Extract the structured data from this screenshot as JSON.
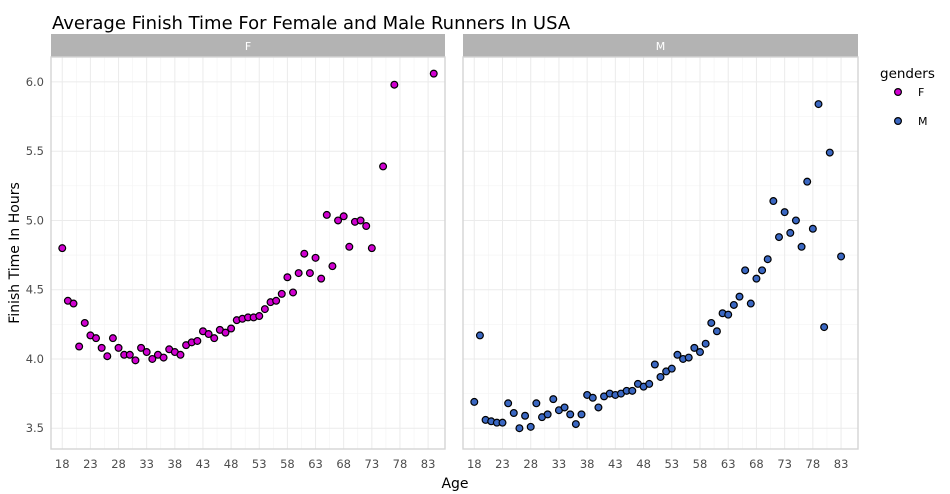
{
  "chart_data": {
    "type": "scatter",
    "title": "Average Finish Time For Female and Male Runners In USA",
    "xlabel": "Age",
    "ylabel": "Finish Time In Hours",
    "xlim": [
      16,
      86
    ],
    "ylim": [
      3.35,
      6.18
    ],
    "x_ticks": [
      18,
      23,
      28,
      33,
      38,
      43,
      48,
      53,
      58,
      63,
      68,
      73,
      78,
      83
    ],
    "y_ticks": [
      3.5,
      4.0,
      4.5,
      5.0,
      5.5,
      6.0
    ],
    "y_tick_labels": [
      "3.5",
      "4.0",
      "4.5",
      "5.0",
      "5.5",
      "6.0"
    ],
    "grid": true,
    "legend": {
      "title": "genders",
      "position": "right"
    },
    "facets": [
      {
        "label": "F",
        "color": "#d000d0",
        "points": [
          [
            18,
            4.8
          ],
          [
            19,
            4.42
          ],
          [
            20,
            4.4
          ],
          [
            21,
            4.09
          ],
          [
            22,
            4.26
          ],
          [
            23,
            4.17
          ],
          [
            24,
            4.15
          ],
          [
            25,
            4.08
          ],
          [
            26,
            4.02
          ],
          [
            27,
            4.15
          ],
          [
            28,
            4.08
          ],
          [
            29,
            4.03
          ],
          [
            30,
            4.03
          ],
          [
            31,
            3.99
          ],
          [
            32,
            4.08
          ],
          [
            33,
            4.05
          ],
          [
            34,
            4.0
          ],
          [
            35,
            4.03
          ],
          [
            36,
            4.01
          ],
          [
            37,
            4.07
          ],
          [
            38,
            4.05
          ],
          [
            39,
            4.03
          ],
          [
            40,
            4.1
          ],
          [
            41,
            4.12
          ],
          [
            42,
            4.13
          ],
          [
            43,
            4.2
          ],
          [
            44,
            4.18
          ],
          [
            45,
            4.15
          ],
          [
            46,
            4.21
          ],
          [
            47,
            4.19
          ],
          [
            48,
            4.22
          ],
          [
            49,
            4.28
          ],
          [
            50,
            4.29
          ],
          [
            51,
            4.3
          ],
          [
            52,
            4.3
          ],
          [
            53,
            4.31
          ],
          [
            54,
            4.36
          ],
          [
            55,
            4.41
          ],
          [
            56,
            4.42
          ],
          [
            57,
            4.47
          ],
          [
            58,
            4.59
          ],
          [
            59,
            4.48
          ],
          [
            60,
            4.62
          ],
          [
            61,
            4.76
          ],
          [
            62,
            4.62
          ],
          [
            63,
            4.73
          ],
          [
            64,
            4.58
          ],
          [
            65,
            5.04
          ],
          [
            66,
            4.67
          ],
          [
            67,
            5.0
          ],
          [
            68,
            5.03
          ],
          [
            69,
            4.81
          ],
          [
            70,
            4.99
          ],
          [
            71,
            5.0
          ],
          [
            72,
            4.96
          ],
          [
            73,
            4.8
          ],
          [
            75,
            5.39
          ],
          [
            77,
            5.98
          ],
          [
            84,
            6.06
          ]
        ]
      },
      {
        "label": "M",
        "color": "#3a67c2",
        "points": [
          [
            18,
            3.69
          ],
          [
            19,
            4.17
          ],
          [
            20,
            3.56
          ],
          [
            21,
            3.55
          ],
          [
            22,
            3.54
          ],
          [
            23,
            3.54
          ],
          [
            24,
            3.68
          ],
          [
            25,
            3.61
          ],
          [
            26,
            3.5
          ],
          [
            27,
            3.59
          ],
          [
            28,
            3.51
          ],
          [
            29,
            3.68
          ],
          [
            30,
            3.58
          ],
          [
            31,
            3.6
          ],
          [
            32,
            3.71
          ],
          [
            33,
            3.63
          ],
          [
            34,
            3.65
          ],
          [
            35,
            3.6
          ],
          [
            36,
            3.53
          ],
          [
            37,
            3.6
          ],
          [
            38,
            3.74
          ],
          [
            39,
            3.72
          ],
          [
            40,
            3.65
          ],
          [
            41,
            3.73
          ],
          [
            42,
            3.75
          ],
          [
            43,
            3.74
          ],
          [
            44,
            3.75
          ],
          [
            45,
            3.77
          ],
          [
            46,
            3.77
          ],
          [
            47,
            3.82
          ],
          [
            48,
            3.8
          ],
          [
            49,
            3.82
          ],
          [
            50,
            3.96
          ],
          [
            51,
            3.87
          ],
          [
            52,
            3.91
          ],
          [
            53,
            3.93
          ],
          [
            54,
            4.03
          ],
          [
            55,
            4.0
          ],
          [
            56,
            4.01
          ],
          [
            57,
            4.08
          ],
          [
            58,
            4.05
          ],
          [
            59,
            4.11
          ],
          [
            60,
            4.26
          ],
          [
            61,
            4.2
          ],
          [
            62,
            4.33
          ],
          [
            63,
            4.32
          ],
          [
            64,
            4.39
          ],
          [
            65,
            4.45
          ],
          [
            66,
            4.64
          ],
          [
            67,
            4.4
          ],
          [
            68,
            4.58
          ],
          [
            69,
            4.64
          ],
          [
            70,
            4.72
          ],
          [
            71,
            5.14
          ],
          [
            72,
            4.88
          ],
          [
            73,
            5.06
          ],
          [
            74,
            4.91
          ],
          [
            75,
            5.0
          ],
          [
            76,
            4.81
          ],
          [
            77,
            5.28
          ],
          [
            78,
            4.94
          ],
          [
            79,
            5.84
          ],
          [
            80,
            4.23
          ],
          [
            81,
            5.49
          ],
          [
            83,
            4.74
          ]
        ]
      }
    ]
  }
}
